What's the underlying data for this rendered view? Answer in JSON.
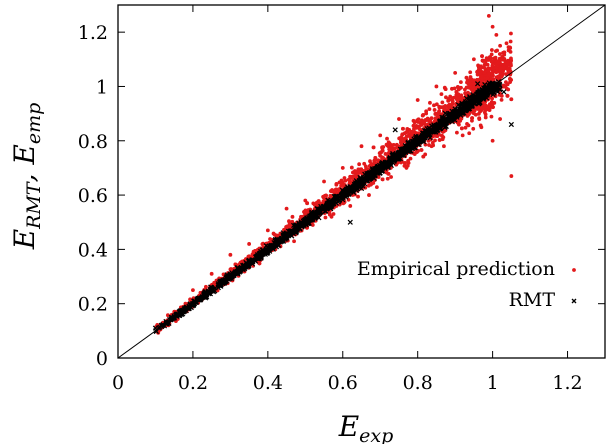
{
  "chart_data": {
    "type": "scatter",
    "xlabel": {
      "main": "E",
      "sub": "exp"
    },
    "ylabel": {
      "main": "E",
      "sub1": "RMT",
      "sep": ", E",
      "sub2": "emp"
    },
    "xlim": [
      0,
      1.3
    ],
    "ylim": [
      0,
      1.3
    ],
    "x_ticks": [
      "0",
      "0.2",
      "0.4",
      "0.6",
      "0.8",
      "1",
      "1.2"
    ],
    "x_tick_values": [
      0,
      0.2,
      0.4,
      0.6,
      0.8,
      1.0,
      1.2
    ],
    "y_ticks": [
      "0",
      "0.2",
      "0.4",
      "0.6",
      "0.8",
      "1",
      "1.2"
    ],
    "y_tick_values": [
      0,
      0.2,
      0.4,
      0.6,
      0.8,
      1.0,
      1.2
    ],
    "grid": false,
    "legend_position": "bottom-right",
    "reference_line": {
      "type": "diagonal",
      "from": [
        0,
        0
      ],
      "to": [
        1.3,
        1.3
      ],
      "color": "#000000"
    },
    "series": [
      {
        "name": "Empirical prediction",
        "marker": "dot",
        "color": "#e31a1c",
        "x_range": [
          0.1,
          1.06
        ],
        "spread": "widening with x",
        "points": [
          [
            0.12,
            0.13
          ],
          [
            0.15,
            0.17
          ],
          [
            0.18,
            0.2
          ],
          [
            0.2,
            0.25
          ],
          [
            0.22,
            0.24
          ],
          [
            0.25,
            0.31
          ],
          [
            0.28,
            0.27
          ],
          [
            0.3,
            0.38
          ],
          [
            0.33,
            0.34
          ],
          [
            0.35,
            0.42
          ],
          [
            0.38,
            0.36
          ],
          [
            0.4,
            0.47
          ],
          [
            0.42,
            0.4
          ],
          [
            0.45,
            0.55
          ],
          [
            0.47,
            0.43
          ],
          [
            0.5,
            0.58
          ],
          [
            0.52,
            0.49
          ],
          [
            0.55,
            0.65
          ],
          [
            0.57,
            0.52
          ],
          [
            0.6,
            0.7
          ],
          [
            0.62,
            0.56
          ],
          [
            0.65,
            0.78
          ],
          [
            0.67,
            0.6
          ],
          [
            0.7,
            0.82
          ],
          [
            0.72,
            0.66
          ],
          [
            0.75,
            0.88
          ],
          [
            0.77,
            0.7
          ],
          [
            0.8,
            0.95
          ],
          [
            0.82,
            0.75
          ],
          [
            0.85,
            1.0
          ],
          [
            0.87,
            0.78
          ],
          [
            0.9,
            1.05
          ],
          [
            0.92,
            0.82
          ],
          [
            0.95,
            1.1
          ],
          [
            0.97,
            0.85
          ],
          [
            1.0,
            1.22
          ],
          [
            1.0,
            0.8
          ],
          [
            1.02,
            1.15
          ],
          [
            1.02,
            0.88
          ],
          [
            1.05,
            0.67
          ],
          [
            0.99,
            1.26
          ],
          [
            1.01,
            1.19
          ]
        ]
      },
      {
        "name": "RMT",
        "marker": "cross",
        "color": "#000000",
        "x_range": [
          0.1,
          1.05
        ],
        "spread": "tight along diagonal",
        "points": [
          [
            0.1,
            0.11
          ],
          [
            0.15,
            0.15
          ],
          [
            0.2,
            0.2
          ],
          [
            0.25,
            0.26
          ],
          [
            0.3,
            0.3
          ],
          [
            0.35,
            0.36
          ],
          [
            0.4,
            0.41
          ],
          [
            0.45,
            0.45
          ],
          [
            0.5,
            0.51
          ],
          [
            0.55,
            0.55
          ],
          [
            0.6,
            0.6
          ],
          [
            0.65,
            0.66
          ],
          [
            0.7,
            0.69
          ],
          [
            0.75,
            0.75
          ],
          [
            0.8,
            0.8
          ],
          [
            0.85,
            0.85
          ],
          [
            0.9,
            0.9
          ],
          [
            0.95,
            0.94
          ],
          [
            1.0,
            0.99
          ],
          [
            1.03,
            0.98
          ],
          [
            1.05,
            0.86
          ],
          [
            0.62,
            0.5
          ],
          [
            0.74,
            0.84
          ],
          [
            0.96,
            1.01
          ]
        ]
      }
    ]
  }
}
